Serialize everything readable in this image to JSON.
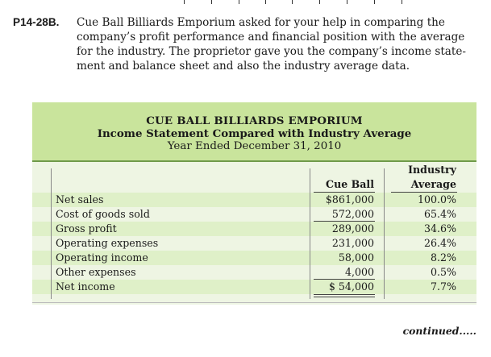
{
  "problem": {
    "id": "P14-28B.",
    "lines": [
      "Cue Ball Billiards Emporium asked for your help in comparing the",
      "company’s profit performance and financial position with the average",
      "for the industry. The proprietor gave you the company’s income state-",
      "ment and balance sheet and also the industry average data."
    ]
  },
  "table": {
    "title": "CUE BALL BILLIARDS EMPORIUM",
    "subtitle": "Income Statement Compared with Industry Average",
    "period": "Year Ended December 31, 2010",
    "columns": {
      "company": "Cue Ball",
      "industry_line1": "Industry",
      "industry_line2": "Average"
    },
    "rows": [
      {
        "label": "Net sales",
        "company": "$861,000",
        "industry": "100.0%"
      },
      {
        "label": "Cost of goods sold",
        "company": "572,000",
        "industry": "65.4%"
      },
      {
        "label": "Gross profit",
        "company": "289,000",
        "industry": "34.6%"
      },
      {
        "label": "Operating expenses",
        "company": "231,000",
        "industry": "26.4%"
      },
      {
        "label": "Operating income",
        "company": "58,000",
        "industry": "8.2%"
      },
      {
        "label": "Other expenses",
        "company": "4,000",
        "industry": "0.5%"
      },
      {
        "label": "Net income",
        "company": "$ 54,000",
        "industry": "7.7%"
      }
    ]
  },
  "footer": {
    "continued": "continued....."
  },
  "colors": {
    "header_bg": "#c9e49c",
    "row_alt_bg": "#dff0c8",
    "body_bg": "#eef5e3"
  }
}
